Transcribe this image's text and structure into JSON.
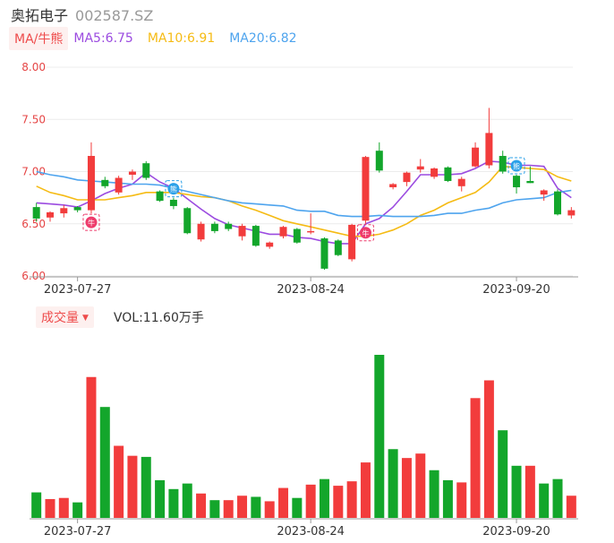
{
  "header": {
    "name": "奥拓电子",
    "code": "002587.SZ"
  },
  "ma_legend": {
    "label": "MA/牛熊",
    "items": [
      {
        "text": "MA5:6.75",
        "color": "#9b4be0"
      },
      {
        "text": "MA10:6.91",
        "color": "#f5bb14"
      },
      {
        "text": "MA20:6.82",
        "color": "#4ea4ee"
      }
    ]
  },
  "volume_legend": {
    "label": "成交量",
    "caret": "▼",
    "value": "VOL:11.60万手"
  },
  "colors": {
    "up": "#f23c3c",
    "down": "#13a62b",
    "grid": "#ececec",
    "axis_red": "#e54545"
  },
  "chart_data": [
    {
      "type": "candlestick",
      "ylim": [
        6.0,
        8.0
      ],
      "y_ticks": [
        "8.00",
        "7.50",
        "7.00",
        "6.50",
        "6.00"
      ],
      "x_tick_labels": [
        {
          "index": 3,
          "label": "2023-07-27"
        },
        {
          "index": 20,
          "label": "2023-08-24"
        },
        {
          "index": 35,
          "label": "2023-09-20"
        }
      ],
      "candles": [
        {
          "o": 6.66,
          "h": 6.7,
          "l": 6.52,
          "c": 6.55
        },
        {
          "o": 6.56,
          "h": 6.62,
          "l": 6.52,
          "c": 6.61
        },
        {
          "o": 6.6,
          "h": 6.68,
          "l": 6.56,
          "c": 6.65
        },
        {
          "o": 6.66,
          "h": 6.67,
          "l": 6.61,
          "c": 6.63
        },
        {
          "o": 6.63,
          "h": 7.28,
          "l": 6.6,
          "c": 7.15
        },
        {
          "o": 6.92,
          "h": 6.95,
          "l": 6.84,
          "c": 6.86
        },
        {
          "o": 6.8,
          "h": 6.96,
          "l": 6.78,
          "c": 6.94
        },
        {
          "o": 6.97,
          "h": 7.02,
          "l": 6.92,
          "c": 7.0
        },
        {
          "o": 7.08,
          "h": 7.1,
          "l": 6.92,
          "c": 6.94
        },
        {
          "o": 6.81,
          "h": 6.82,
          "l": 6.71,
          "c": 6.72
        },
        {
          "o": 6.73,
          "h": 6.75,
          "l": 6.64,
          "c": 6.67
        },
        {
          "o": 6.65,
          "h": 6.66,
          "l": 6.4,
          "c": 6.41
        },
        {
          "o": 6.35,
          "h": 6.52,
          "l": 6.33,
          "c": 6.5
        },
        {
          "o": 6.5,
          "h": 6.52,
          "l": 6.41,
          "c": 6.43
        },
        {
          "o": 6.5,
          "h": 6.52,
          "l": 6.43,
          "c": 6.45
        },
        {
          "o": 6.38,
          "h": 6.5,
          "l": 6.34,
          "c": 6.48
        },
        {
          "o": 6.48,
          "h": 6.49,
          "l": 6.28,
          "c": 6.29
        },
        {
          "o": 6.28,
          "h": 6.33,
          "l": 6.26,
          "c": 6.32
        },
        {
          "o": 6.38,
          "h": 6.48,
          "l": 6.36,
          "c": 6.47
        },
        {
          "o": 6.45,
          "h": 6.46,
          "l": 6.31,
          "c": 6.32
        },
        {
          "o": 6.42,
          "h": 6.6,
          "l": 6.4,
          "c": 6.43
        },
        {
          "o": 6.36,
          "h": 6.37,
          "l": 6.06,
          "c": 6.07
        },
        {
          "o": 6.34,
          "h": 6.35,
          "l": 6.19,
          "c": 6.2
        },
        {
          "o": 6.16,
          "h": 6.5,
          "l": 6.14,
          "c": 6.49
        },
        {
          "o": 6.53,
          "h": 7.15,
          "l": 6.5,
          "c": 7.14
        },
        {
          "o": 7.2,
          "h": 7.28,
          "l": 6.99,
          "c": 7.01
        },
        {
          "o": 6.85,
          "h": 6.89,
          "l": 6.83,
          "c": 6.88
        },
        {
          "o": 6.9,
          "h": 7.0,
          "l": 6.86,
          "c": 6.99
        },
        {
          "o": 7.02,
          "h": 7.12,
          "l": 6.99,
          "c": 7.05
        },
        {
          "o": 6.95,
          "h": 7.04,
          "l": 6.93,
          "c": 7.03
        },
        {
          "o": 7.04,
          "h": 7.05,
          "l": 6.9,
          "c": 6.91
        },
        {
          "o": 6.86,
          "h": 6.95,
          "l": 6.81,
          "c": 6.93
        },
        {
          "o": 7.05,
          "h": 7.28,
          "l": 7.04,
          "c": 7.23
        },
        {
          "o": 7.06,
          "h": 7.61,
          "l": 7.03,
          "c": 7.37
        },
        {
          "o": 7.15,
          "h": 7.2,
          "l": 6.98,
          "c": 7.0
        },
        {
          "o": 6.96,
          "h": 6.97,
          "l": 6.79,
          "c": 6.85
        },
        {
          "o": 6.91,
          "h": 7.05,
          "l": 6.89,
          "c": 6.89
        },
        {
          "o": 6.78,
          "h": 6.83,
          "l": 6.72,
          "c": 6.82
        },
        {
          "o": 6.81,
          "h": 6.83,
          "l": 6.58,
          "c": 6.59
        },
        {
          "o": 6.58,
          "h": 6.66,
          "l": 6.55,
          "c": 6.63
        }
      ],
      "ma_lines": [
        {
          "name": "MA5",
          "color": "#9b4be0",
          "values": [
            6.7,
            6.69,
            6.68,
            6.66,
            6.72,
            6.79,
            6.84,
            6.88,
            6.99,
            6.9,
            6.84,
            6.74,
            6.64,
            6.55,
            6.49,
            6.46,
            6.43,
            6.4,
            6.4,
            6.37,
            6.36,
            6.33,
            6.31,
            6.31,
            6.5,
            6.55,
            6.66,
            6.81,
            6.97,
            6.97,
            6.97,
            6.98,
            7.03,
            7.1,
            7.09,
            7.06,
            7.06,
            7.05,
            6.84,
            6.75
          ]
        },
        {
          "name": "MA10",
          "color": "#f5bb14",
          "values": [
            6.86,
            6.8,
            6.77,
            6.73,
            6.73,
            6.73,
            6.75,
            6.77,
            6.8,
            6.8,
            6.8,
            6.78,
            6.76,
            6.75,
            6.72,
            6.67,
            6.63,
            6.58,
            6.53,
            6.5,
            6.47,
            6.44,
            6.41,
            6.38,
            6.38,
            6.4,
            6.44,
            6.5,
            6.58,
            6.63,
            6.7,
            6.75,
            6.8,
            6.9,
            7.05,
            7.04,
            7.03,
            7.02,
            6.95,
            6.91
          ]
        },
        {
          "name": "MA20",
          "color": "#4ea4ee",
          "values": [
            7.0,
            6.97,
            6.95,
            6.92,
            6.91,
            6.9,
            6.89,
            6.88,
            6.88,
            6.87,
            6.84,
            6.81,
            6.78,
            6.75,
            6.72,
            6.7,
            6.69,
            6.68,
            6.67,
            6.63,
            6.62,
            6.62,
            6.58,
            6.57,
            6.57,
            6.58,
            6.57,
            6.57,
            6.57,
            6.58,
            6.6,
            6.6,
            6.63,
            6.65,
            6.7,
            6.73,
            6.74,
            6.75,
            6.8,
            6.82
          ]
        }
      ],
      "markers": [
        {
          "index": 4,
          "at": "low",
          "text": "牛",
          "color": "#ee3b6b"
        },
        {
          "index": 10,
          "at": "high",
          "text": "熊",
          "color": "#2aa0e8"
        },
        {
          "index": 24,
          "at": "low",
          "text": "牛",
          "color": "#ee3b6b"
        },
        {
          "index": 35,
          "at": "high",
          "text": "熊",
          "color": "#2aa0e8"
        }
      ]
    },
    {
      "type": "bar",
      "x_tick_labels": [
        {
          "index": 3,
          "label": "2023-07-27"
        },
        {
          "index": 20,
          "label": "2023-08-24"
        },
        {
          "index": 35,
          "label": "2023-09-20"
        }
      ],
      "bars": [
        {
          "v": 23,
          "d": "down"
        },
        {
          "v": 17,
          "d": "up"
        },
        {
          "v": 18,
          "d": "up"
        },
        {
          "v": 14,
          "d": "down"
        },
        {
          "v": 127,
          "d": "up"
        },
        {
          "v": 100,
          "d": "down"
        },
        {
          "v": 65,
          "d": "up"
        },
        {
          "v": 56,
          "d": "up"
        },
        {
          "v": 55,
          "d": "down"
        },
        {
          "v": 34,
          "d": "down"
        },
        {
          "v": 26,
          "d": "down"
        },
        {
          "v": 31,
          "d": "down"
        },
        {
          "v": 22,
          "d": "up"
        },
        {
          "v": 16,
          "d": "down"
        },
        {
          "v": 16,
          "d": "up"
        },
        {
          "v": 20,
          "d": "up"
        },
        {
          "v": 19,
          "d": "down"
        },
        {
          "v": 15,
          "d": "up"
        },
        {
          "v": 27,
          "d": "up"
        },
        {
          "v": 18,
          "d": "down"
        },
        {
          "v": 30,
          "d": "up"
        },
        {
          "v": 35,
          "d": "down"
        },
        {
          "v": 29,
          "d": "up"
        },
        {
          "v": 33,
          "d": "up"
        },
        {
          "v": 50,
          "d": "up"
        },
        {
          "v": 147,
          "d": "down"
        },
        {
          "v": 62,
          "d": "down"
        },
        {
          "v": 54,
          "d": "up"
        },
        {
          "v": 58,
          "d": "up"
        },
        {
          "v": 43,
          "d": "down"
        },
        {
          "v": 34,
          "d": "down"
        },
        {
          "v": 32,
          "d": "up"
        },
        {
          "v": 108,
          "d": "up"
        },
        {
          "v": 124,
          "d": "up"
        },
        {
          "v": 79,
          "d": "down"
        },
        {
          "v": 47,
          "d": "down"
        },
        {
          "v": 47,
          "d": "up"
        },
        {
          "v": 31,
          "d": "down"
        },
        {
          "v": 35,
          "d": "down"
        },
        {
          "v": 20,
          "d": "up"
        }
      ]
    }
  ]
}
